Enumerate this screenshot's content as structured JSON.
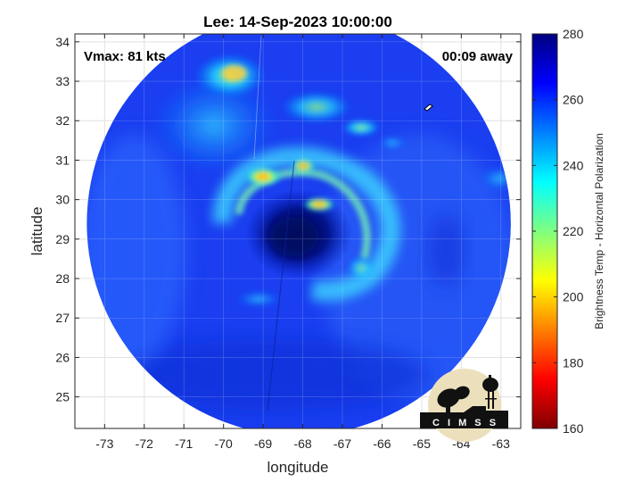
{
  "chart_data": {
    "type": "heatmap",
    "title": "Lee: 14-Sep-2023 10:00:00",
    "xlabel": "longitude",
    "ylabel": "latitude",
    "xlim": [
      -73.75,
      -62.5
    ],
    "ylim": [
      24.2,
      34.2
    ],
    "x_ticks": [
      -73,
      -72,
      -71,
      -70,
      -69,
      -68,
      -67,
      -66,
      -65,
      -64,
      -63
    ],
    "y_ticks": [
      25,
      26,
      27,
      28,
      29,
      30,
      31,
      32,
      33,
      34
    ],
    "grid": true,
    "annotations": {
      "vmax": "Vmax: 81 kts",
      "time_offset": "00:09 away"
    },
    "colorbar": {
      "label": "Brightness Temp - Horizontal Polarization",
      "range": [
        160,
        280
      ],
      "ticks": [
        160,
        180,
        200,
        220,
        240,
        260,
        280
      ],
      "colormap": [
        "#7f0000",
        "#ff0000",
        "#ff8000",
        "#ffff00",
        "#80ff80",
        "#00ffff",
        "#0080ff",
        "#0000ff",
        "#00007f"
      ]
    },
    "swath": {
      "center": [
        -68.1,
        29.4
      ],
      "radius_deg": 5.35
    },
    "storm": {
      "eye_center": [
        -68.05,
        29.25
      ],
      "features": [
        {
          "lon": -69.4,
          "lat": 30.6,
          "value": 196
        },
        {
          "lon": -67.6,
          "lat": 29.85,
          "value": 200
        },
        {
          "lon": -68.0,
          "lat": 30.9,
          "value": 215
        },
        {
          "lon": -69.85,
          "lat": 33.0,
          "value": 215
        },
        {
          "lon": -66.5,
          "lat": 31.8,
          "value": 225
        }
      ]
    }
  },
  "logo": {
    "text": "C I M S S"
  }
}
